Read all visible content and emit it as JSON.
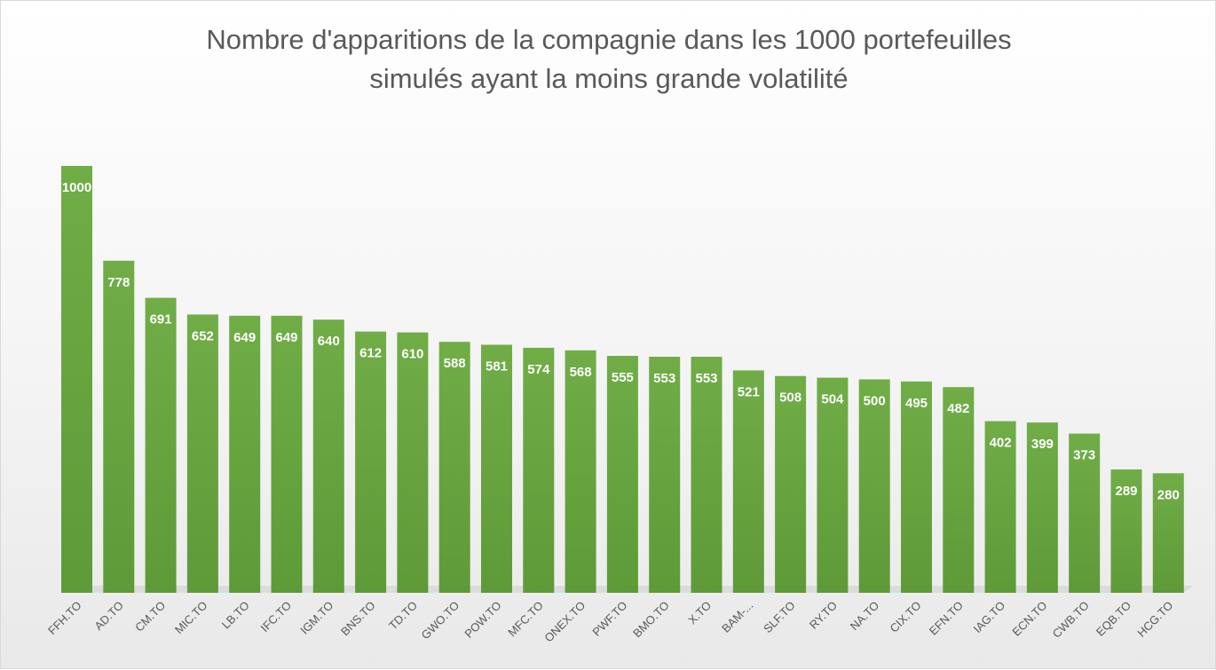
{
  "chart_data": {
    "type": "bar",
    "title_lines": [
      "Nombre d'apparitions de la compagnie dans les 1000 portefeuilles",
      "simulés ayant la moins grande volatilité"
    ],
    "xlabel": "",
    "ylabel": "",
    "categories": [
      "FFH.TO",
      "AD.TO",
      "CM.TO",
      "MIC.TO",
      "LB.TO",
      "IFC.TO",
      "IGM.TO",
      "BNS.TO",
      "TD.TO",
      "GWO.TO",
      "POW.TO",
      "MFC.TO",
      "ONEX.TO",
      "PWF.TO",
      "BMO.TO",
      "X.TO",
      "BAM-...",
      "SLF.TO",
      "RY.TO",
      "NA.TO",
      "CIX.TO",
      "EFN.TO",
      "IAG.TO",
      "ECN.TO",
      "CWB.TO",
      "EQB.TO",
      "HCG.TO"
    ],
    "values": [
      1000,
      778,
      691,
      652,
      649,
      649,
      640,
      612,
      610,
      588,
      581,
      574,
      568,
      555,
      553,
      553,
      521,
      508,
      504,
      500,
      495,
      482,
      402,
      399,
      373,
      289,
      280
    ],
    "ylim": [
      0,
      1000
    ],
    "grid": false,
    "legend": "none",
    "data_labels": true,
    "bar_color": "#70ad47",
    "bar_color_dark": "#5e9a38",
    "label_color": "#ffffff",
    "tick_label_color": "#595959"
  }
}
